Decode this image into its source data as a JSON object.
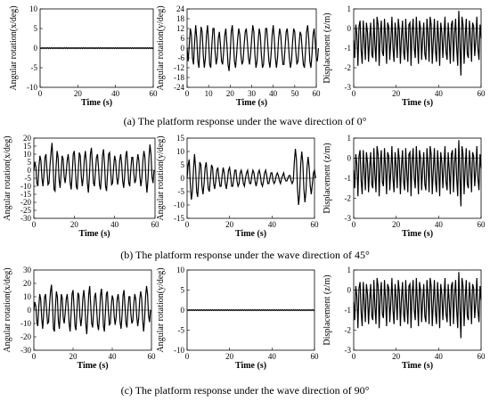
{
  "captions": {
    "a": "(a)  The platform response under the wave direction of 0°",
    "b": "(b) The platform response under the wave direction of 45°",
    "c": "(c) The platform response under the wave direction of 90°"
  },
  "chart_data": [
    {
      "id": "a1",
      "type": "line",
      "ylabel": "Angular rotation(x/deg)",
      "xlabel": "Time (s)",
      "xlim": [
        0,
        60
      ],
      "ylim": [
        -10,
        10
      ],
      "yticks": [
        -10,
        -5,
        0,
        5,
        10
      ],
      "xticks": [
        0,
        20,
        40,
        60
      ],
      "x_step": 0.5,
      "values": [
        0.1,
        -0.1,
        0.1,
        -0.1,
        0.1,
        -0.1,
        0.1,
        -0.1,
        0.1,
        -0.1,
        0.1,
        -0.1,
        0.1,
        -0.1,
        0.1,
        -0.1,
        0.1,
        -0.1,
        0.1,
        -0.1,
        0.1,
        -0.1,
        0.1,
        -0.1,
        0.1,
        -0.1,
        0.1,
        -0.1,
        0.1,
        -0.1,
        0.1,
        -0.1,
        0.1,
        -0.1,
        0.1,
        -0.1,
        0.1,
        -0.1,
        0.1,
        -0.1,
        0.1,
        -0.1,
        0.1,
        -0.1,
        0.1,
        -0.1,
        0.1,
        -0.1,
        0.1,
        -0.1,
        0.1,
        -0.1,
        0.1,
        -0.1,
        0.1,
        -0.1,
        0.1,
        -0.1,
        0.1,
        -0.1,
        0.1,
        -0.1,
        0.1,
        -0.1,
        0.1,
        -0.1,
        0.1,
        -0.1,
        0.1,
        -0.1,
        0.1,
        -0.1,
        0.1,
        -0.1,
        0.1,
        -0.1,
        0.1,
        -0.1,
        0.1,
        -0.1,
        0.1,
        -0.1,
        0.1,
        -0.1,
        0.1,
        -0.1,
        0.1,
        -0.1,
        0.1,
        -0.1,
        0.1,
        -0.1,
        0.1,
        -0.1,
        0.1,
        -0.1,
        0.1,
        -0.1,
        0.1,
        -0.1,
        0.1,
        -0.1,
        0.1,
        -0.1,
        0.1,
        -0.1,
        0.1,
        -0.1,
        0.1,
        -0.1,
        0.1,
        -0.1,
        0.1,
        -0.1,
        0.1,
        -0.1,
        0.1,
        -0.1,
        0.1,
        -0.1,
        0.1
      ]
    },
    {
      "id": "a2",
      "type": "line",
      "ylabel": "Angular rotation(y/deg)",
      "xlabel": "Time (s)",
      "xlim": [
        0,
        60
      ],
      "ylim": [
        -24,
        24
      ],
      "yticks": [
        -24,
        -18,
        -12,
        -6,
        0,
        6,
        12,
        18,
        24
      ],
      "xticks": [
        0,
        10,
        20,
        30,
        40,
        50,
        60
      ],
      "x_step": 0.5,
      "values": [
        0,
        -8,
        2,
        12,
        8,
        -6,
        -10,
        4,
        14,
        6,
        -8,
        -12,
        2,
        13,
        10,
        -4,
        -12,
        -6,
        8,
        14,
        4,
        -10,
        -12,
        2,
        12,
        12,
        -2,
        -10,
        -6,
        6,
        10,
        2,
        -8,
        -10,
        -2,
        8,
        12,
        2,
        -10,
        -14,
        -4,
        10,
        14,
        4,
        -8,
        -12,
        -4,
        6,
        12,
        8,
        -4,
        -10,
        -8,
        2,
        10,
        12,
        4,
        -6,
        -10,
        -4,
        6,
        14,
        10,
        -4,
        -12,
        -8,
        4,
        12,
        8,
        -4,
        -12,
        -10,
        2,
        12,
        12,
        2,
        -8,
        -12,
        -4,
        8,
        14,
        6,
        -6,
        -12,
        -6,
        6,
        12,
        8,
        -2,
        -10,
        -10,
        0,
        10,
        12,
        4,
        -6,
        -12,
        -8,
        4,
        12,
        10,
        -2,
        -10,
        -8,
        2,
        10,
        8,
        -2,
        -10,
        -12,
        -2,
        10,
        14,
        6,
        -8,
        -12,
        -4,
        8,
        12,
        4,
        -6,
        -8,
        0
      ]
    },
    {
      "id": "a3",
      "type": "line",
      "ylabel": "Displacement (z/m)",
      "xlabel": "Time (s)",
      "xlim": [
        0,
        60
      ],
      "ylim": [
        -3,
        1
      ],
      "yticks": [
        -3,
        -2,
        -1,
        0,
        1
      ],
      "xticks": [
        0,
        20,
        40,
        60
      ],
      "x_step": 0.5,
      "values": [
        -0.6,
        -1.5,
        0.2,
        -0.3,
        -1.9,
        0.1,
        0.4,
        -1.1,
        -1.8,
        0.4,
        -0.6,
        -1.6,
        0.3,
        -0.2,
        -1.7,
        -0.5,
        0.3,
        -1.3,
        -1.5,
        0.5,
        -0.8,
        -1.7,
        0.6,
        0.2,
        -1.9,
        -0.3,
        0.4,
        -1.2,
        -1.4,
        0.5,
        -0.5,
        -1.8,
        0.3,
        0.1,
        -1.6,
        -0.6,
        0.6,
        -1.0,
        -1.7,
        0.3,
        -0.4,
        -1.5,
        0.5,
        -0.1,
        -1.8,
        -0.4,
        0.4,
        -1.2,
        -1.6,
        0.5,
        -0.7,
        -1.7,
        0.2,
        0.3,
        -1.9,
        -0.2,
        0.5,
        -1.0,
        -1.5,
        0.6,
        -0.6,
        -1.8,
        0.4,
        0.0,
        -1.6,
        -0.5,
        0.3,
        -1.3,
        -1.6,
        0.5,
        -0.3,
        -1.7,
        0.6,
        0.2,
        -1.8,
        -0.6,
        0.5,
        -1.1,
        -1.7,
        0.4,
        -0.5,
        -1.9,
        0.3,
        -0.2,
        -1.5,
        -0.4,
        0.6,
        -1.2,
        -1.6,
        0.3,
        -0.6,
        -1.8,
        0.2,
        0.4,
        -1.7,
        -0.3,
        0.5,
        -1.0,
        -1.9,
        0.9,
        -0.8,
        -2.4,
        0.6,
        0.2,
        -1.8,
        -0.5,
        0.5,
        -1.3,
        -1.5,
        0.4,
        -0.4,
        -1.7,
        0.3,
        0.1,
        -1.4,
        -0.6,
        0.6,
        -1.0,
        -1.6,
        0.2,
        -0.5
      ]
    },
    {
      "id": "b1",
      "type": "line",
      "ylabel": "Angular rotation(x/deg)",
      "xlabel": "Time (s)",
      "xlim": [
        0,
        60
      ],
      "ylim": [
        -30,
        20
      ],
      "yticks": [
        -30,
        -25,
        -20,
        -15,
        -10,
        -5,
        0,
        5,
        10,
        15,
        20
      ],
      "xticks": [
        0,
        20,
        40,
        60
      ],
      "x_step": 0.5,
      "values": [
        0,
        5,
        2,
        -8,
        -10,
        2,
        9,
        6,
        -5,
        -10,
        -3,
        8,
        10,
        0,
        -9,
        -8,
        3,
        11,
        17,
        4,
        -12,
        -13,
        2,
        12,
        8,
        -6,
        -11,
        -2,
        9,
        7,
        -4,
        -8,
        -2,
        6,
        10,
        3,
        -8,
        -12,
        -2,
        10,
        12,
        2,
        -10,
        -12,
        0,
        11,
        9,
        -4,
        -10,
        -4,
        7,
        12,
        5,
        -8,
        -14,
        -4,
        10,
        14,
        4,
        -8,
        -10,
        -1,
        8,
        10,
        2,
        -9,
        -12,
        -3,
        9,
        13,
        4,
        -10,
        -13,
        -2,
        10,
        11,
        0,
        -9,
        -8,
        2,
        9,
        6,
        -4,
        -9,
        -4,
        6,
        10,
        4,
        -7,
        -11,
        -3,
        9,
        12,
        3,
        -8,
        -10,
        0,
        8,
        8,
        -2,
        -8,
        -6,
        4,
        10,
        6,
        -4,
        -10,
        -5,
        6,
        12,
        8,
        -6,
        -14,
        -6,
        8,
        16,
        10,
        -4,
        -8,
        0
      ]
    },
    {
      "id": "b2",
      "type": "line",
      "ylabel": "Angular rotation(y/deg)",
      "xlabel": "Time (s)",
      "xlim": [
        0,
        60
      ],
      "ylim": [
        -15,
        15
      ],
      "yticks": [
        -15,
        -10,
        -5,
        0,
        5,
        10,
        15
      ],
      "xticks": [
        0,
        20,
        40,
        60
      ],
      "x_step": 0.5,
      "values": [
        0,
        5,
        7,
        -2,
        -8,
        -5,
        3,
        9,
        4,
        -5,
        -7,
        0,
        6,
        5,
        -3,
        -6,
        -2,
        4,
        6,
        1,
        -4,
        -5,
        0,
        5,
        4,
        -2,
        -4,
        -1,
        3,
        4,
        0,
        -3,
        -3,
        1,
        4,
        2,
        -2,
        -4,
        -1,
        3,
        4,
        1,
        -3,
        -3,
        0,
        3,
        3,
        -1,
        -3,
        -2,
        2,
        3,
        1,
        -2,
        -3,
        0,
        2,
        3,
        0,
        -2,
        -2,
        1,
        3,
        2,
        -1,
        -3,
        -1,
        2,
        3,
        1,
        -2,
        -3,
        -1,
        2,
        3,
        1,
        -2,
        -2,
        0,
        2,
        2,
        -1,
        -2,
        -1,
        1,
        2,
        1,
        -1,
        -2,
        0,
        1,
        2,
        0,
        -1,
        -1,
        0,
        1,
        1,
        -1,
        -2,
        -1,
        6,
        11,
        7,
        -4,
        -10,
        -6,
        5,
        10,
        6,
        -4,
        -9,
        -5,
        4,
        8,
        4,
        -3,
        -6,
        -2,
        2,
        3,
        0
      ]
    },
    {
      "id": "b3",
      "type": "line",
      "ylabel": "Displacement (z/m)",
      "xlabel": "Time (s)",
      "xlim": [
        0,
        60
      ],
      "ylim": [
        -3,
        1
      ],
      "yticks": [
        -3,
        -2,
        -1,
        0,
        1
      ],
      "xticks": [
        0,
        20,
        40,
        60
      ],
      "x_step": 0.5,
      "values": [
        -0.6,
        -1.5,
        0.2,
        -0.3,
        -1.9,
        0.1,
        0.4,
        -1.1,
        -1.8,
        0.4,
        -0.6,
        -1.6,
        0.3,
        -0.2,
        -1.7,
        -0.5,
        0.3,
        -1.3,
        -1.5,
        0.5,
        -0.8,
        -1.7,
        0.6,
        0.2,
        -1.9,
        -0.3,
        0.4,
        -1.2,
        -1.4,
        0.5,
        -0.5,
        -1.8,
        0.3,
        0.1,
        -1.6,
        -0.6,
        0.6,
        -1.0,
        -1.7,
        0.3,
        -0.4,
        -1.5,
        0.5,
        -0.1,
        -1.8,
        -0.4,
        0.4,
        -1.2,
        -1.6,
        0.5,
        -0.7,
        -1.7,
        0.2,
        0.3,
        -1.9,
        -0.2,
        0.5,
        -1.0,
        -1.5,
        0.6,
        -0.6,
        -1.8,
        0.4,
        0.0,
        -1.6,
        -0.5,
        0.3,
        -1.3,
        -1.6,
        0.5,
        -0.3,
        -1.7,
        0.6,
        0.2,
        -1.8,
        -0.6,
        0.5,
        -1.1,
        -1.7,
        0.4,
        -0.5,
        -1.9,
        0.3,
        -0.2,
        -1.5,
        -0.4,
        0.6,
        -1.2,
        -1.6,
        0.3,
        -0.6,
        -1.8,
        0.2,
        0.4,
        -1.7,
        -0.3,
        0.5,
        -1.0,
        -1.9,
        0.9,
        -0.8,
        -2.4,
        0.6,
        0.2,
        -1.8,
        -0.5,
        0.5,
        -1.3,
        -1.5,
        0.4,
        -0.4,
        -1.7,
        0.3,
        0.1,
        -1.4,
        -0.6,
        0.6,
        -1.0,
        -1.6,
        0.2,
        -0.5
      ]
    },
    {
      "id": "c1",
      "type": "line",
      "ylabel": "Angular rotation(x/deg)",
      "xlabel": "Time (s)",
      "xlim": [
        0,
        60
      ],
      "ylim": [
        -30,
        30
      ],
      "yticks": [
        -30,
        -20,
        -10,
        0,
        10,
        20,
        30
      ],
      "xticks": [
        0,
        20,
        40,
        60
      ],
      "x_step": 0.5,
      "values": [
        0,
        6,
        3,
        -8,
        -12,
        2,
        12,
        8,
        -6,
        -14,
        -3,
        10,
        12,
        0,
        -10,
        -9,
        4,
        14,
        19,
        5,
        -14,
        -16,
        2,
        14,
        10,
        -8,
        -14,
        -2,
        12,
        9,
        -6,
        -10,
        -2,
        8,
        12,
        3,
        -10,
        -16,
        -3,
        12,
        15,
        2,
        -12,
        -15,
        0,
        13,
        11,
        -5,
        -12,
        -5,
        9,
        15,
        6,
        -10,
        -18,
        -4,
        12,
        18,
        4,
        -10,
        -13,
        -1,
        10,
        13,
        2,
        -11,
        -15,
        -4,
        11,
        16,
        5,
        -12,
        -16,
        -2,
        12,
        14,
        0,
        -11,
        -10,
        3,
        11,
        8,
        -5,
        -11,
        -5,
        8,
        12,
        5,
        -9,
        -14,
        -4,
        11,
        15,
        3,
        -10,
        -13,
        0,
        10,
        10,
        -3,
        -10,
        -8,
        5,
        12,
        8,
        -5,
        -12,
        -6,
        8,
        14,
        9,
        -7,
        -16,
        -7,
        10,
        18,
        12,
        -4,
        -9,
        0
      ]
    },
    {
      "id": "c2",
      "type": "line",
      "ylabel": "Angular rotation(y/deg)",
      "xlabel": "Time (s)",
      "xlim": [
        0,
        60
      ],
      "ylim": [
        -10,
        10
      ],
      "yticks": [
        -10,
        -5,
        0,
        5,
        10
      ],
      "xticks": [
        0,
        20,
        40,
        60
      ],
      "x_step": 0.5,
      "values": [
        0.1,
        -0.1,
        0.1,
        -0.1,
        0.1,
        -0.1,
        0.1,
        -0.1,
        0.1,
        -0.1,
        0.1,
        -0.1,
        0.1,
        -0.1,
        0.1,
        -0.1,
        0.1,
        -0.1,
        0.1,
        -0.1,
        0.1,
        -0.1,
        0.1,
        -0.1,
        0.1,
        -0.1,
        0.1,
        -0.1,
        0.1,
        -0.1,
        0.1,
        -0.1,
        0.1,
        -0.1,
        0.1,
        -0.1,
        0.1,
        -0.1,
        0.1,
        -0.1,
        0.1,
        -0.1,
        0.1,
        -0.1,
        0.1,
        -0.1,
        0.1,
        -0.1,
        0.1,
        -0.1,
        0.1,
        -0.1,
        0.1,
        -0.1,
        0.1,
        -0.1,
        0.1,
        -0.1,
        0.1,
        -0.1,
        0.1,
        -0.1,
        0.1,
        -0.1,
        0.1,
        -0.1,
        0.1,
        -0.1,
        0.1,
        -0.1,
        0.1,
        -0.1,
        0.1,
        -0.1,
        0.1,
        -0.1,
        0.1,
        -0.1,
        0.1,
        -0.1,
        0.1,
        -0.1,
        0.1,
        -0.1,
        0.1,
        -0.1,
        0.1,
        -0.1,
        0.1,
        -0.1,
        0.1,
        -0.1,
        0.1,
        -0.1,
        0.1,
        -0.1,
        0.1,
        -0.1,
        0.1,
        -0.1,
        0.1,
        -0.1,
        0.1,
        -0.1,
        0.1,
        -0.1,
        0.1,
        -0.1,
        0.1,
        -0.1,
        0.1,
        -0.1,
        0.1,
        -0.1,
        0.1,
        -0.1,
        0.1,
        -0.1,
        0.1,
        -0.1,
        0.1
      ]
    },
    {
      "id": "c3",
      "type": "line",
      "ylabel": "Displacement (z/m)",
      "xlabel": "Time (s)",
      "xlim": [
        0,
        60
      ],
      "ylim": [
        -3,
        1
      ],
      "yticks": [
        -3,
        -2,
        -1,
        0,
        1
      ],
      "xticks": [
        0,
        20,
        40,
        60
      ],
      "x_step": 0.5,
      "values": [
        -0.6,
        -1.5,
        0.2,
        -0.3,
        -1.9,
        0.1,
        0.4,
        -1.1,
        -1.8,
        0.4,
        -0.6,
        -1.6,
        0.3,
        -0.2,
        -1.7,
        -0.5,
        0.3,
        -1.3,
        -1.5,
        0.5,
        -0.8,
        -1.7,
        0.6,
        0.2,
        -1.9,
        -0.3,
        0.4,
        -1.2,
        -1.4,
        0.5,
        -0.5,
        -1.8,
        0.3,
        0.1,
        -1.6,
        -0.6,
        0.6,
        -1.0,
        -1.7,
        0.3,
        -0.4,
        -1.5,
        0.5,
        -0.1,
        -1.8,
        -0.4,
        0.4,
        -1.2,
        -1.6,
        0.5,
        -0.7,
        -1.7,
        0.2,
        0.3,
        -1.9,
        -0.2,
        0.5,
        -1.0,
        -1.5,
        0.6,
        -0.6,
        -1.8,
        0.4,
        0.0,
        -1.6,
        -0.5,
        0.3,
        -1.3,
        -1.6,
        0.5,
        -0.3,
        -1.7,
        0.6,
        0.2,
        -1.8,
        -0.6,
        0.5,
        -1.1,
        -1.7,
        0.4,
        -0.5,
        -1.9,
        0.3,
        -0.2,
        -1.5,
        -0.4,
        0.6,
        -1.2,
        -1.6,
        0.3,
        -0.6,
        -1.8,
        0.2,
        0.4,
        -1.7,
        -0.3,
        0.5,
        -1.0,
        -1.9,
        0.9,
        -0.8,
        -2.4,
        0.6,
        0.2,
        -1.8,
        -0.5,
        0.5,
        -1.3,
        -1.5,
        0.4,
        -0.4,
        -1.7,
        0.3,
        0.1,
        -1.4,
        -0.6,
        0.6,
        -1.0,
        -1.6,
        0.2,
        -0.5
      ]
    }
  ]
}
